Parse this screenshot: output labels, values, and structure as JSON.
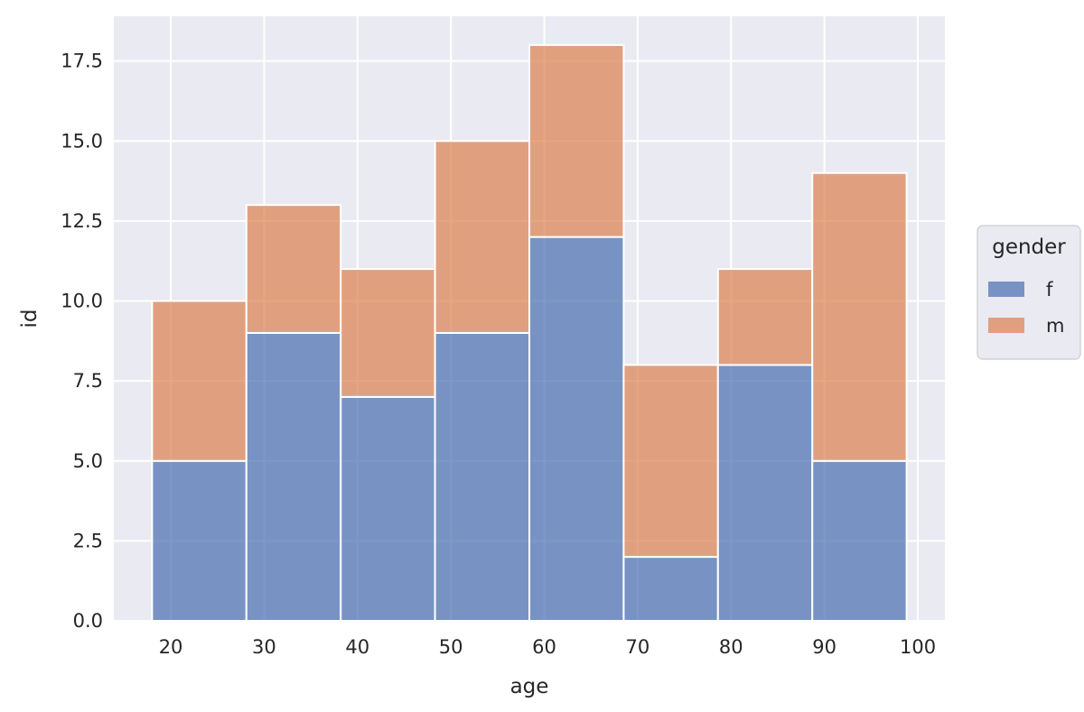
{
  "chart_data": {
    "type": "bar",
    "stacked": true,
    "title": "",
    "xlabel": "age",
    "ylabel": "id",
    "bin_edges": [
      18,
      28.1,
      38.2,
      48.3,
      58.4,
      68.5,
      78.6,
      88.7,
      98.8
    ],
    "series": [
      {
        "name": "f",
        "values": [
          5,
          9,
          7,
          9,
          12,
          2,
          8,
          5
        ],
        "color": "#4c72b0"
      },
      {
        "name": "m",
        "values": [
          5,
          4,
          4,
          6,
          6,
          6,
          3,
          9
        ],
        "color": "#dd8452"
      }
    ],
    "xlim": [
      13.9,
      102.9
    ],
    "ylim": [
      0,
      18.9
    ],
    "xticks": [
      20,
      30,
      40,
      50,
      60,
      70,
      80,
      90,
      100
    ],
    "xtick_labels": [
      "20",
      "30",
      "40",
      "50",
      "60",
      "70",
      "80",
      "90",
      "100"
    ],
    "yticks": [
      0,
      2.5,
      5,
      7.5,
      10,
      12.5,
      15,
      17.5
    ],
    "ytick_labels": [
      "0.0",
      "2.5",
      "5.0",
      "7.5",
      "10.0",
      "12.5",
      "15.0",
      "17.5"
    ],
    "grid": true,
    "background": "#eaeaf2",
    "legend": {
      "title": "gender",
      "placement": "outside-right"
    }
  }
}
